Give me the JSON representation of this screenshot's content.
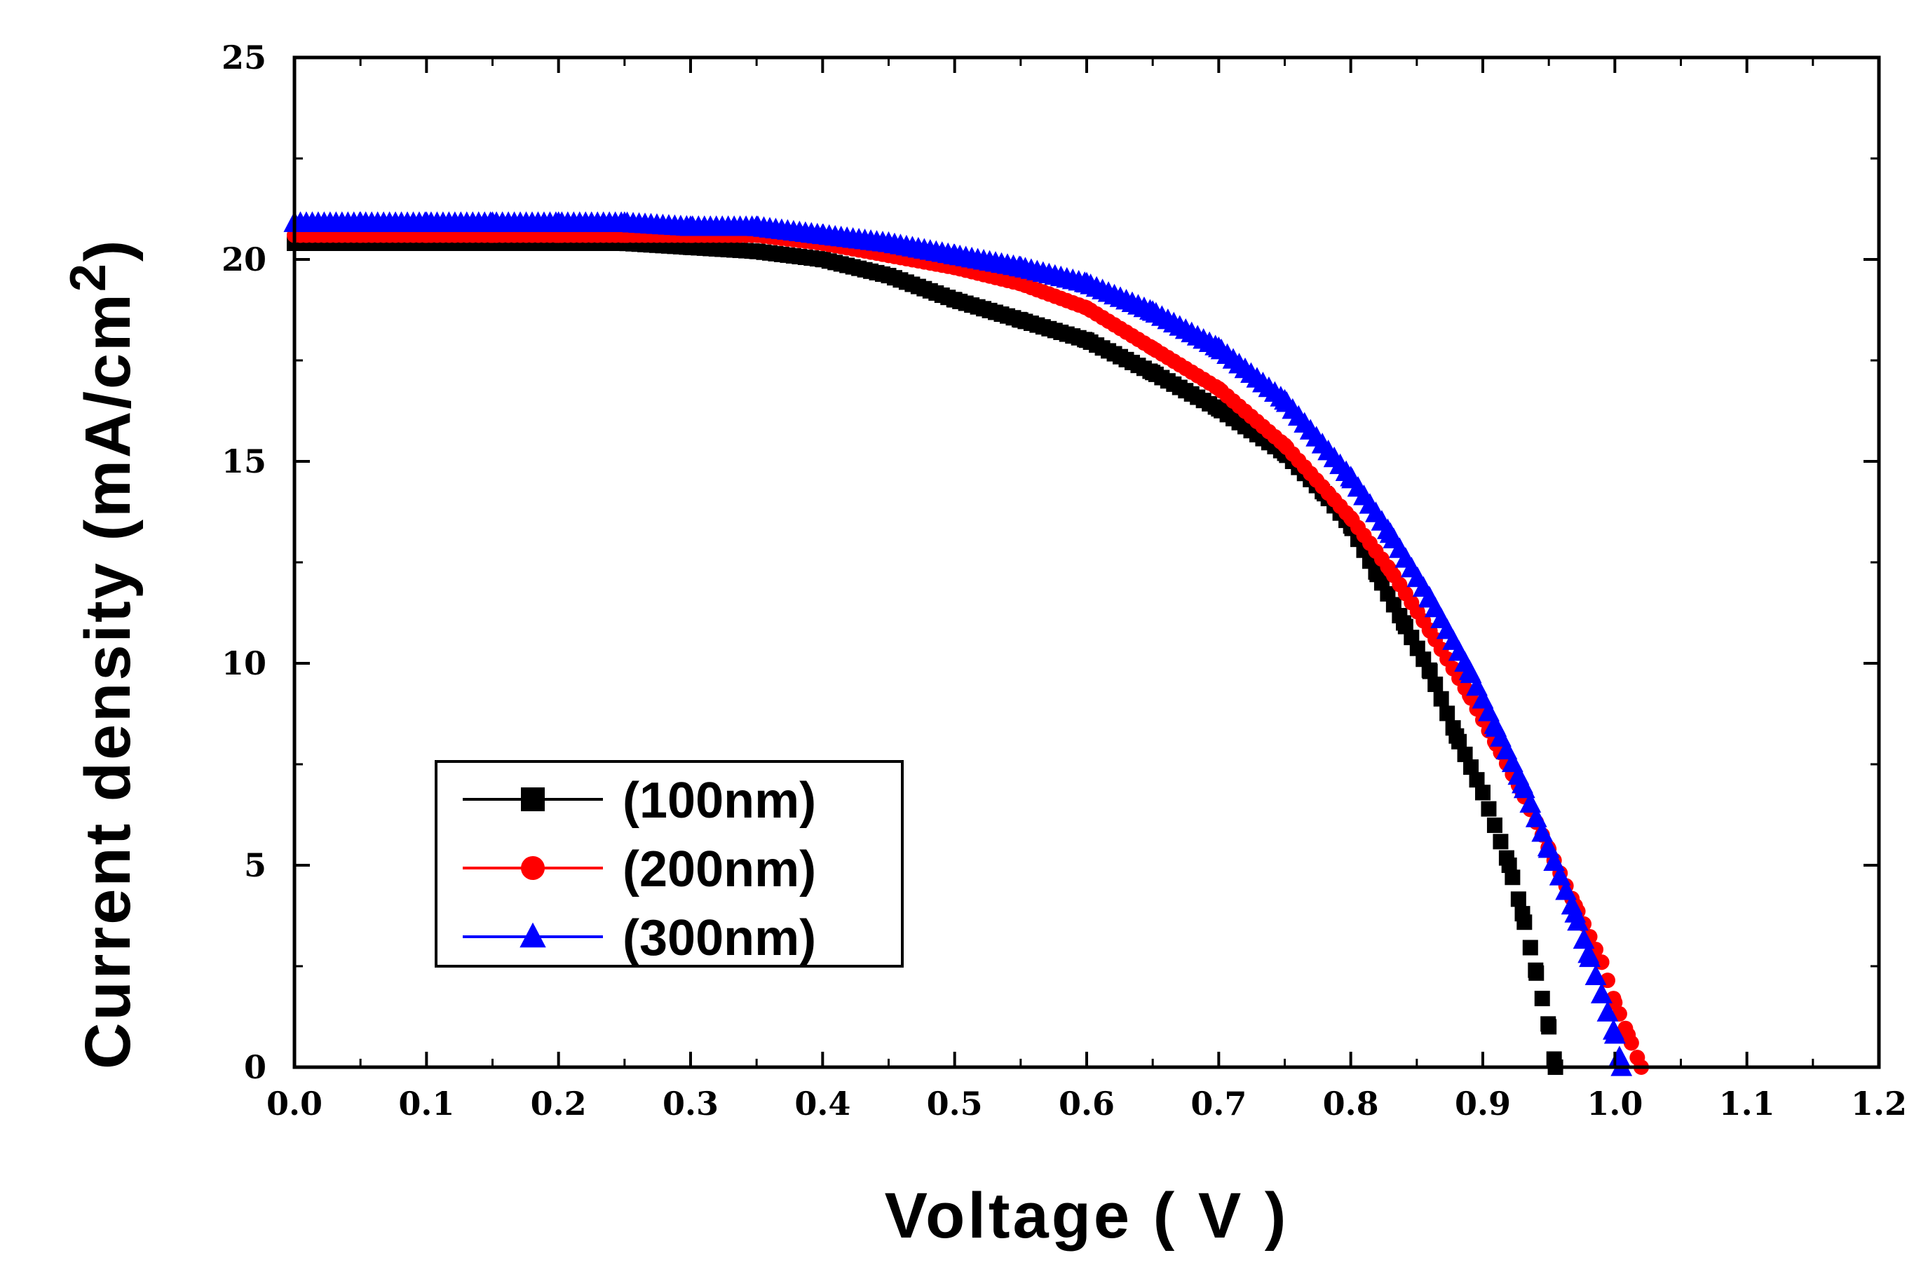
{
  "chart_data": {
    "type": "scatter",
    "title": "",
    "xlabel": "Voltage ( V )",
    "ylabel": "Current density (mA/cm",
    "ylabel_sup": "2",
    "ylabel_close": ")",
    "xlim": [
      0.0,
      1.2
    ],
    "ylim": [
      0,
      25
    ],
    "xticks": [
      "0.0",
      "0.1",
      "0.2",
      "0.3",
      "0.4",
      "0.5",
      "0.6",
      "0.7",
      "0.8",
      "0.9",
      "1.0",
      "1.1",
      "1.2"
    ],
    "yticks": [
      "0",
      "5",
      "10",
      "15",
      "20",
      "25"
    ],
    "grid": false,
    "legend_position": "bottom-left",
    "series": [
      {
        "name": "(100nm)",
        "color": "#000000",
        "marker": "square",
        "x": [
          0.0,
          0.05,
          0.1,
          0.15,
          0.2,
          0.25,
          0.3,
          0.35,
          0.4,
          0.45,
          0.5,
          0.55,
          0.6,
          0.65,
          0.7,
          0.75,
          0.78,
          0.8,
          0.82,
          0.84,
          0.86,
          0.88,
          0.9,
          0.92,
          0.93,
          0.94,
          0.95,
          0.955
        ],
        "y": [
          20.4,
          20.4,
          20.4,
          20.4,
          20.4,
          20.4,
          20.3,
          20.2,
          20.0,
          19.6,
          19.0,
          18.5,
          18.0,
          17.2,
          16.3,
          15.2,
          14.2,
          13.4,
          12.2,
          11.0,
          9.8,
          8.2,
          6.8,
          5.0,
          3.8,
          2.4,
          1.0,
          0.0
        ]
      },
      {
        "name": "(200nm)",
        "color": "#ff0000",
        "marker": "circle",
        "x": [
          0.0,
          0.05,
          0.1,
          0.15,
          0.2,
          0.25,
          0.3,
          0.35,
          0.4,
          0.45,
          0.5,
          0.55,
          0.6,
          0.65,
          0.7,
          0.75,
          0.8,
          0.83,
          0.86,
          0.89,
          0.91,
          0.93,
          0.95,
          0.97,
          0.99,
          1.0,
          1.01,
          1.02
        ],
        "y": [
          20.6,
          20.6,
          20.6,
          20.6,
          20.6,
          20.6,
          20.6,
          20.6,
          20.4,
          20.1,
          19.8,
          19.4,
          18.8,
          17.8,
          16.8,
          15.4,
          13.6,
          12.3,
          10.8,
          9.2,
          8.0,
          6.8,
          5.4,
          4.0,
          2.6,
          1.6,
          0.8,
          0.0
        ]
      },
      {
        "name": "(300nm)",
        "color": "#0000ff",
        "marker": "triangle",
        "x": [
          0.0,
          0.05,
          0.1,
          0.15,
          0.2,
          0.25,
          0.3,
          0.35,
          0.4,
          0.45,
          0.5,
          0.55,
          0.6,
          0.65,
          0.7,
          0.75,
          0.8,
          0.83,
          0.86,
          0.89,
          0.91,
          0.93,
          0.95,
          0.97,
          0.98,
          0.99,
          1.0,
          1.005
        ],
        "y": [
          20.9,
          20.9,
          20.9,
          20.9,
          20.9,
          20.9,
          20.8,
          20.8,
          20.6,
          20.4,
          20.1,
          19.8,
          19.4,
          18.7,
          17.8,
          16.5,
          14.6,
          13.2,
          11.6,
          9.8,
          8.4,
          7.0,
          5.4,
          3.8,
          2.8,
          1.8,
          0.8,
          0.0
        ]
      }
    ]
  }
}
